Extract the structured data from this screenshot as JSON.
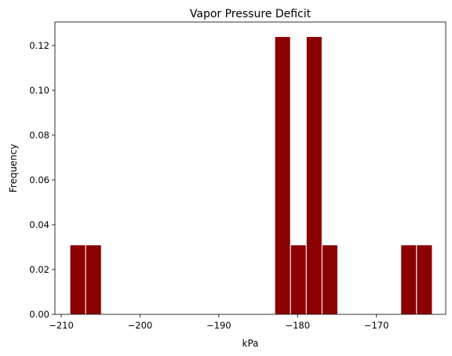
{
  "chart_data": {
    "type": "bar",
    "title": "Vapor Pressure Deficit",
    "xlabel": "kPa",
    "ylabel": "Frequency",
    "xlim": [
      -210.8,
      -161.2
    ],
    "ylim": [
      0,
      0.1305
    ],
    "x_ticks": [
      -210,
      -200,
      -190,
      -180,
      -170
    ],
    "x_tick_labels": [
      "−210",
      "−200",
      "−190",
      "−180",
      "−170"
    ],
    "y_ticks": [
      0.0,
      0.02,
      0.04,
      0.06,
      0.08,
      0.1,
      0.12
    ],
    "y_tick_labels": [
      "0.00",
      "0.02",
      "0.04",
      "0.06",
      "0.08",
      "0.10",
      "0.12"
    ],
    "bin_edges": [
      -208.9,
      -206.9,
      -204.9,
      -202.9,
      -200.9,
      -198.9,
      -196.9,
      -194.9,
      -192.9,
      -190.9,
      -188.9,
      -186.9,
      -184.9,
      -182.9,
      -180.9,
      -178.9,
      -176.9,
      -174.9,
      -172.9,
      -170.9,
      -168.9,
      -166.9,
      -164.9,
      -162.9
    ],
    "values": [
      0.031,
      0.031,
      0,
      0,
      0,
      0,
      0,
      0,
      0,
      0,
      0,
      0,
      0,
      0.124,
      0.031,
      0.124,
      0.031,
      0,
      0,
      0,
      0,
      0.031,
      0.031
    ],
    "bar_color": "#8b0000",
    "edge_color": "#ffffff",
    "grid": false
  }
}
